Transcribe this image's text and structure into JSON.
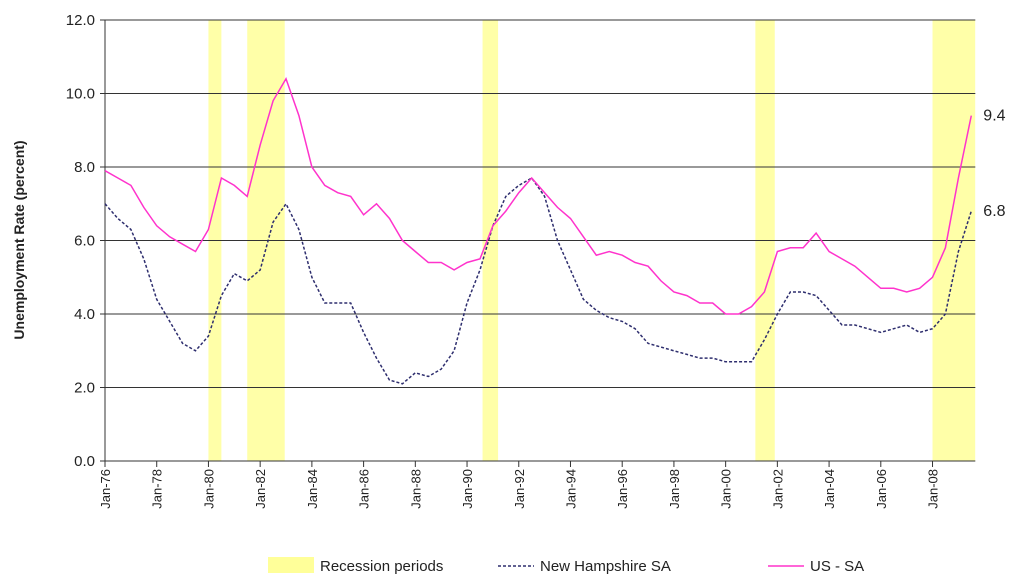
{
  "chart_data": {
    "type": "line",
    "y_label": "Unemployment Rate (percent)",
    "categories": [
      "Jan-76",
      null,
      null,
      null,
      "Jan-78",
      null,
      null,
      null,
      "Jan-80",
      null,
      null,
      null,
      "Jan-82",
      null,
      null,
      null,
      "Jan-84",
      null,
      null,
      null,
      "Jan-86",
      null,
      null,
      null,
      "Jan-88",
      null,
      null,
      null,
      "Jan-90",
      null,
      null,
      null,
      "Jan-92",
      null,
      null,
      null,
      "Jan-94",
      null,
      null,
      null,
      "Jan-96",
      null,
      null,
      null,
      "Jan-98",
      null,
      null,
      null,
      "Jan-00",
      null,
      null,
      null,
      "Jan-02",
      null,
      null,
      null,
      "Jan-04",
      null,
      null,
      null,
      "Jan-06",
      null,
      null,
      null,
      "Jan-08",
      null,
      null,
      null
    ],
    "ylim": [
      0,
      12
    ],
    "yticks": [
      {
        "value": 0,
        "label": "0.0"
      },
      {
        "value": 2,
        "label": "2.0"
      },
      {
        "value": 4,
        "label": "4.0"
      },
      {
        "value": 6,
        "label": "6.0"
      },
      {
        "value": 8,
        "label": "8.0"
      },
      {
        "value": 10,
        "label": "10.0"
      },
      {
        "value": 12,
        "label": "12.0"
      }
    ],
    "grid": true,
    "recessions": {
      "name": "Recession periods",
      "color": "#ffff99",
      "spans": [
        [
          8,
          9
        ],
        [
          11,
          13.9
        ],
        [
          29.2,
          30.4
        ],
        [
          50.3,
          51.8
        ],
        [
          64,
          67.3
        ]
      ]
    },
    "series": [
      {
        "name": "New Hampshire SA",
        "color": "#2e2e6e",
        "dashed": true,
        "end_label": "6.8",
        "values": [
          7.0,
          6.6,
          6.3,
          5.5,
          4.4,
          3.8,
          3.2,
          3.0,
          3.4,
          4.5,
          5.1,
          4.9,
          5.2,
          6.5,
          7.0,
          6.3,
          5.0,
          4.3,
          4.3,
          4.3,
          3.5,
          2.8,
          2.2,
          2.1,
          2.4,
          2.3,
          2.5,
          3.0,
          4.3,
          5.2,
          6.4,
          7.2,
          7.5,
          7.7,
          7.2,
          6.0,
          5.2,
          4.4,
          4.1,
          3.9,
          3.8,
          3.6,
          3.2,
          3.1,
          3.0,
          2.9,
          2.8,
          2.8,
          2.7,
          2.7,
          2.7,
          3.3,
          4.0,
          4.6,
          4.6,
          4.5,
          4.1,
          3.7,
          3.7,
          3.6,
          3.5,
          3.6,
          3.7,
          3.5,
          3.6,
          4.0,
          5.7,
          6.8
        ]
      },
      {
        "name": "US - SA",
        "color": "#ff33cc",
        "dashed": false,
        "end_label": "9.4",
        "values": [
          7.9,
          7.7,
          7.5,
          6.9,
          6.4,
          6.1,
          5.9,
          5.7,
          6.3,
          7.7,
          7.5,
          7.2,
          8.6,
          9.8,
          10.4,
          9.4,
          8.0,
          7.5,
          7.3,
          7.2,
          6.7,
          7.0,
          6.6,
          6.0,
          5.7,
          5.4,
          5.4,
          5.2,
          5.4,
          5.5,
          6.4,
          6.8,
          7.3,
          7.7,
          7.3,
          6.9,
          6.6,
          6.1,
          5.6,
          5.7,
          5.6,
          5.4,
          5.3,
          4.9,
          4.6,
          4.5,
          4.3,
          4.3,
          4.0,
          4.0,
          4.2,
          4.6,
          5.7,
          5.8,
          5.8,
          6.2,
          5.7,
          5.5,
          5.3,
          5.0,
          4.7,
          4.7,
          4.6,
          4.7,
          5.0,
          5.8,
          7.7,
          9.4
        ]
      }
    ]
  }
}
